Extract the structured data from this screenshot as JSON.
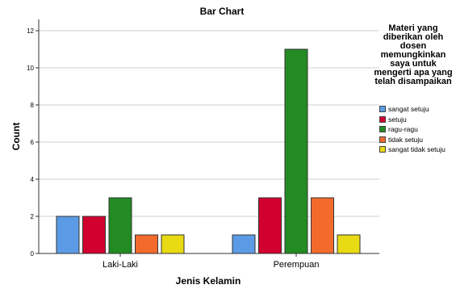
{
  "chart_data": {
    "type": "bar",
    "title": "Bar Chart",
    "xlabel": "Jenis Kelamin",
    "ylabel": "Count",
    "categories": [
      "Laki-Laki",
      "Perempuan"
    ],
    "ylim": [
      0,
      12
    ],
    "yticks": [
      "0",
      "2",
      "4",
      "6",
      "8",
      "10",
      "12"
    ],
    "grid": true,
    "legend_placement": "right",
    "legend_title": "Materi yang diberikan oleh dosen memungkinkan saya untuk mengerti apa yang telah disampaikan",
    "series": [
      {
        "name": "sangat setuju",
        "color": "#5b9be6",
        "values": [
          2,
          1
        ]
      },
      {
        "name": "setuju",
        "color": "#d1002e",
        "values": [
          2,
          3
        ]
      },
      {
        "name": "ragu-ragu",
        "color": "#228b22",
        "values": [
          3,
          11
        ]
      },
      {
        "name": "tidak setuju",
        "color": "#f26b2c",
        "values": [
          1,
          3
        ]
      },
      {
        "name": "sangat tidak setuju",
        "color": "#e8da13",
        "values": [
          1,
          1
        ]
      }
    ]
  }
}
